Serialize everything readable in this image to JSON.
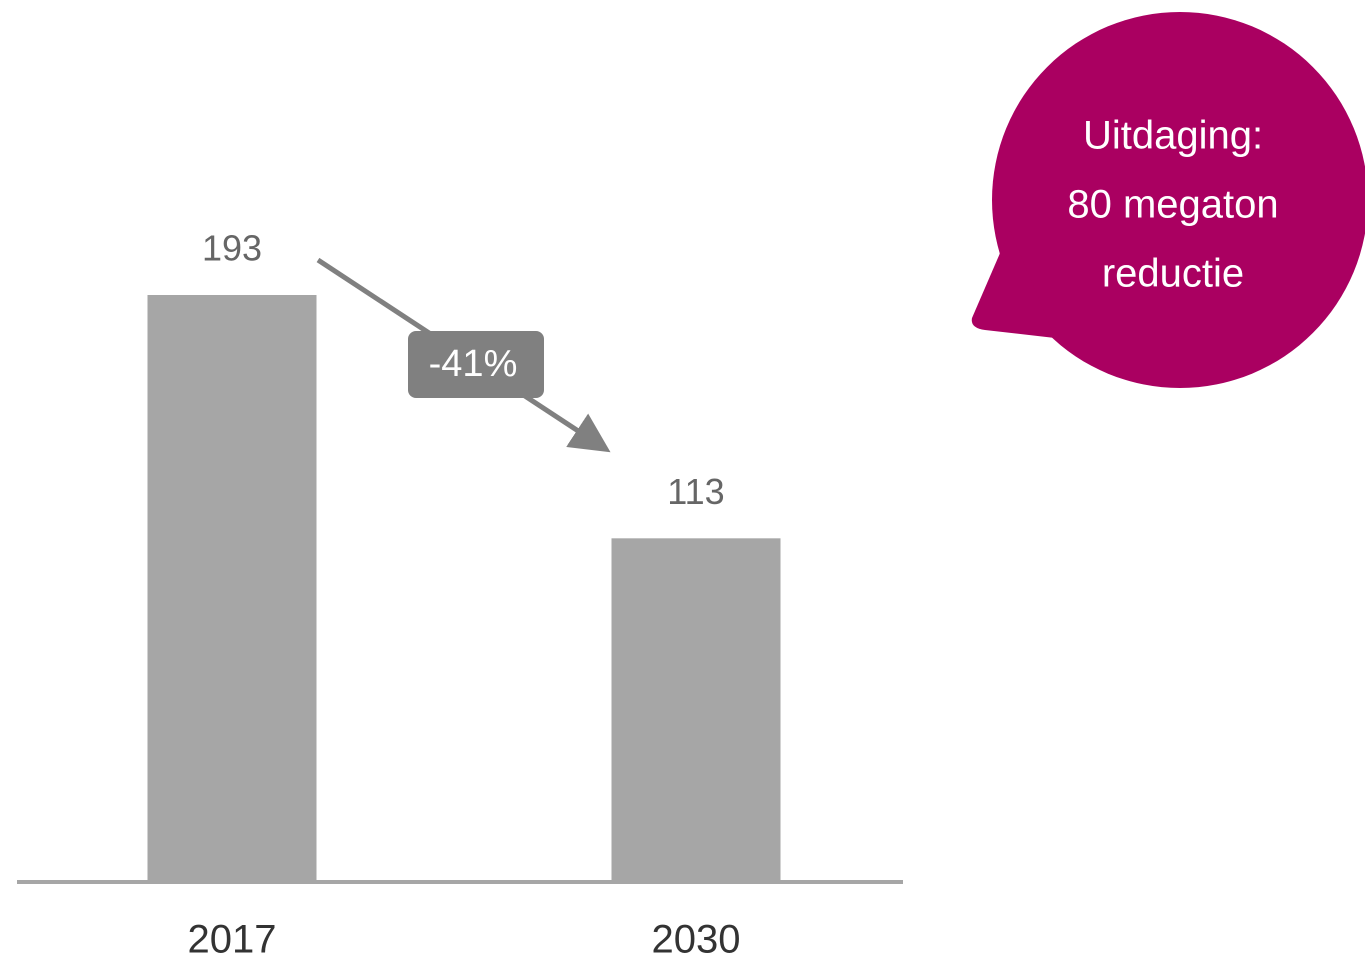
{
  "chart_data": {
    "type": "bar",
    "categories": [
      "2017",
      "2030"
    ],
    "values": [
      193,
      113
    ],
    "color": "#a6a6a6",
    "change_label": "-41%",
    "callout": [
      "Uitdaging:",
      "80 megaton",
      "reductie"
    ]
  }
}
